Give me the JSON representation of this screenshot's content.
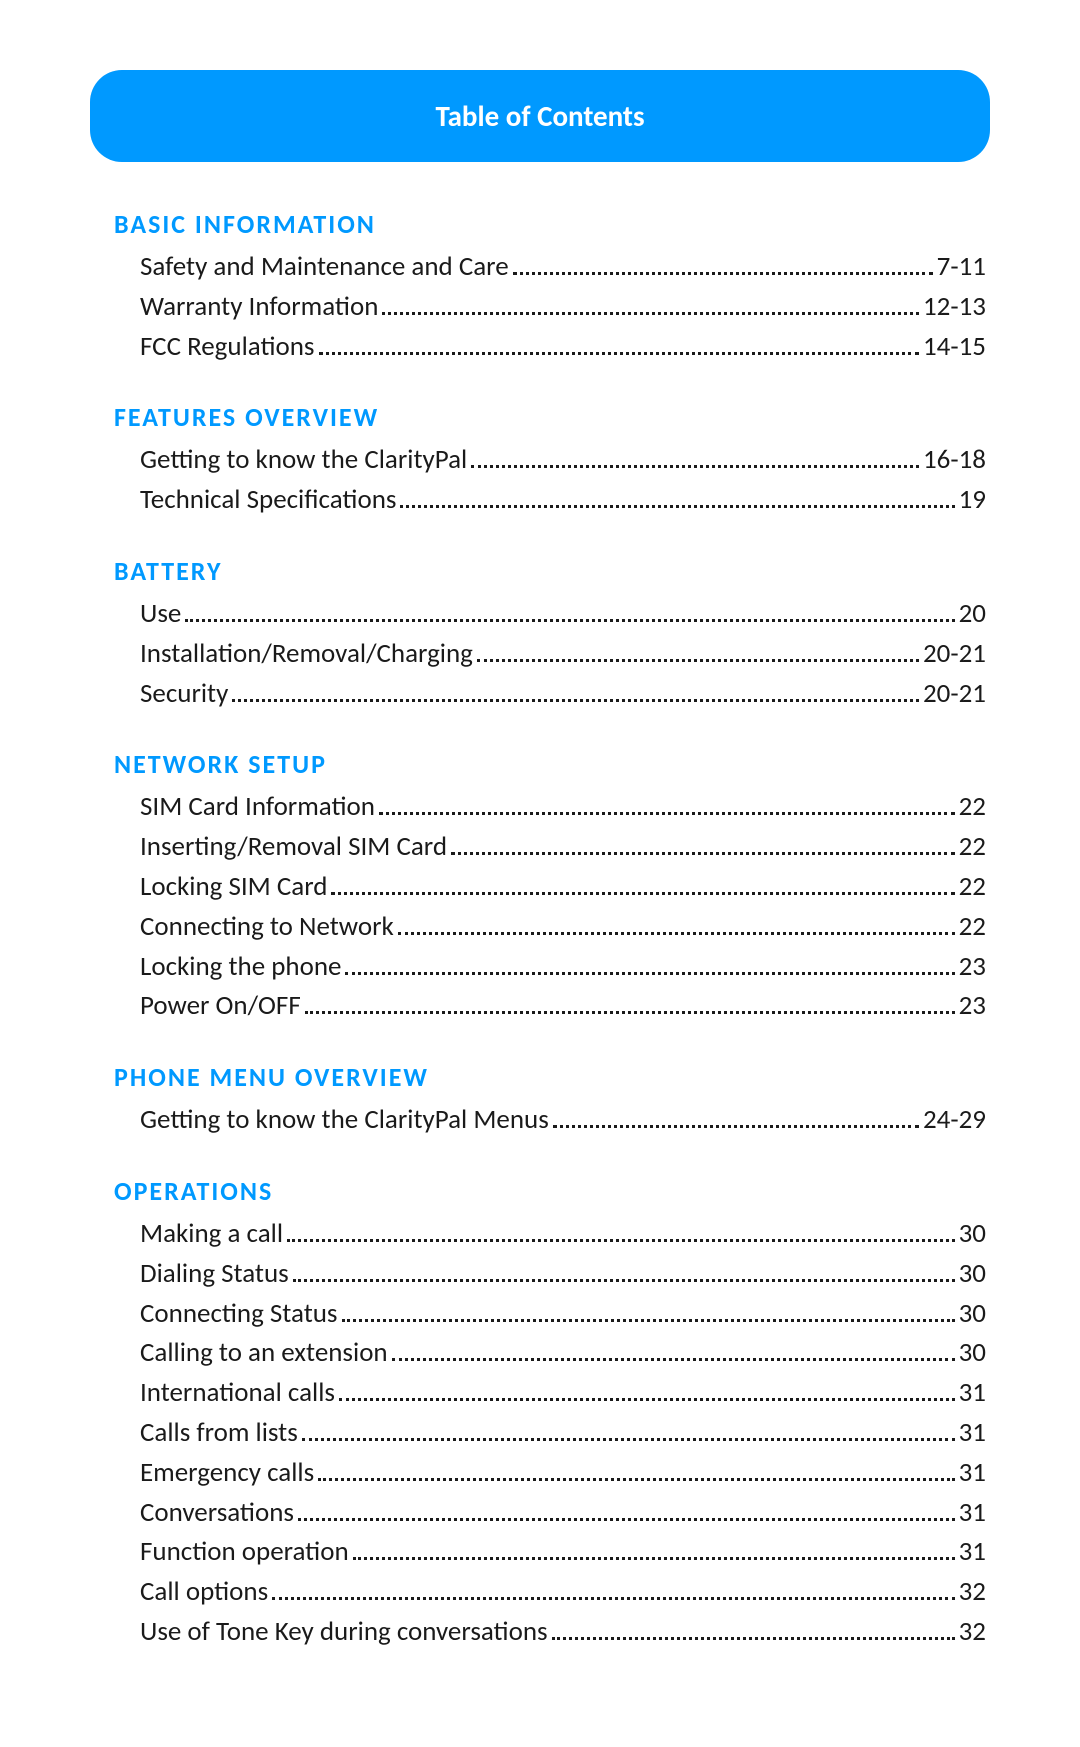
{
  "header": {
    "title": "Table of Contents"
  },
  "colors": {
    "banner_bg": "#0099ff",
    "banner_text": "#ffffff",
    "heading": "#0099ff",
    "body": "#1a1a1a"
  },
  "sections": [
    {
      "heading": "Basic Information",
      "entries": [
        {
          "label": "Safety and Maintenance and Care",
          "page": "7-11"
        },
        {
          "label": "Warranty Information",
          "page": "12-13"
        },
        {
          "label": "FCC Regulations",
          "page": "14-15"
        }
      ]
    },
    {
      "heading": "Features Overview",
      "entries": [
        {
          "label": "Getting to know the ClarityPal",
          "page": "16-18"
        },
        {
          "label": "Technical Specifications",
          "page": "19"
        }
      ]
    },
    {
      "heading": "Battery",
      "entries": [
        {
          "label": "Use",
          "page": "20"
        },
        {
          "label": "Installation/Removal/Charging",
          "page": "20-21"
        },
        {
          "label": "Security",
          "page": "20-21"
        }
      ]
    },
    {
      "heading": "Network Setup",
      "entries": [
        {
          "label": "SIM Card Information",
          "page": "22"
        },
        {
          "label": "Inserting/Removal SIM Card",
          "page": "22"
        },
        {
          "label": "Locking SIM Card",
          "page": "22"
        },
        {
          "label": "Connecting to Network",
          "page": "22"
        },
        {
          "label": "Locking the phone",
          "page": "23"
        },
        {
          "label": "Power On/OFF",
          "page": "23"
        }
      ]
    },
    {
      "heading": "Phone Menu Overview",
      "entries": [
        {
          "label": "Getting to know the ClarityPal Menus",
          "page": "24-29"
        }
      ]
    },
    {
      "heading": "Operations",
      "entries": [
        {
          "label": "Making a call",
          "page": "30"
        },
        {
          "label": "Dialing Status",
          "page": "30"
        },
        {
          "label": "Connecting Status",
          "page": "30"
        },
        {
          "label": "Calling to an extension",
          "page": "30"
        },
        {
          "label": "International calls",
          "page": "31"
        },
        {
          "label": "Calls from lists",
          "page": "31"
        },
        {
          "label": "Emergency calls",
          "page": "31"
        },
        {
          "label": "Conversations",
          "page": "31"
        },
        {
          "label": "Function operation",
          "page": "31"
        },
        {
          "label": "Call options",
          "page": "32"
        },
        {
          "label": "Use of Tone Key during conversations",
          "page": "32"
        }
      ]
    }
  ]
}
